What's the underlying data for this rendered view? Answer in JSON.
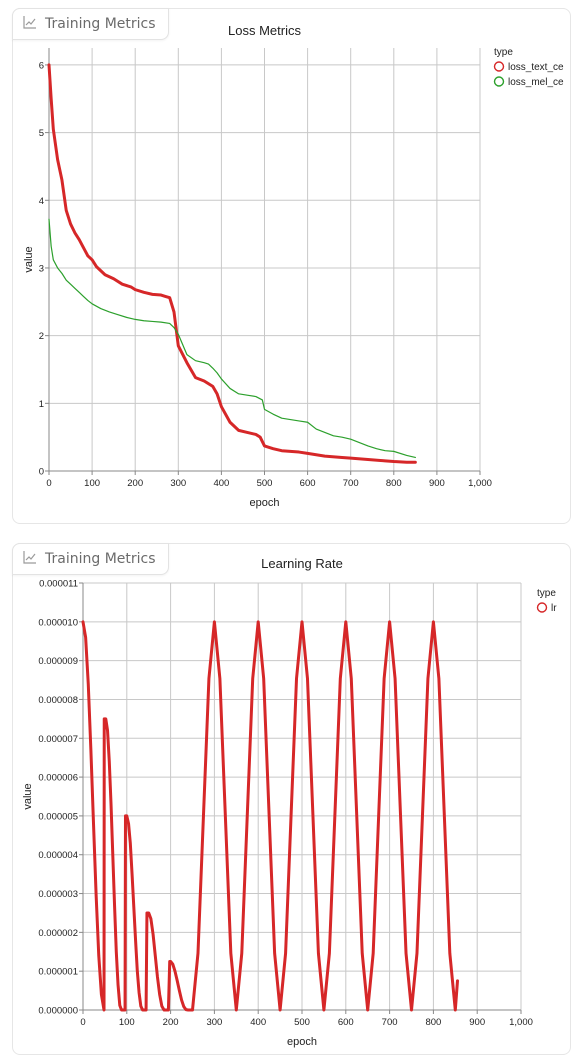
{
  "panels": [
    {
      "tab_label": "Training Metrics",
      "icon": "chart-line-icon"
    },
    {
      "tab_label": "Training Metrics",
      "icon": "chart-line-icon"
    }
  ],
  "chart_data": [
    {
      "type": "line",
      "title": "Loss Metrics",
      "xlabel": "epoch",
      "ylabel": "value",
      "xlim": [
        0,
        1000
      ],
      "ylim": [
        0,
        6.25
      ],
      "xticks": [
        0,
        100,
        200,
        300,
        400,
        500,
        600,
        700,
        800,
        900,
        1000
      ],
      "xtick_labels": [
        "0",
        "100",
        "200",
        "300",
        "400",
        "500",
        "600",
        "700",
        "800",
        "900",
        "1,000"
      ],
      "yticks": [
        0,
        1,
        2,
        3,
        4,
        5,
        6
      ],
      "ytick_labels": [
        "0",
        "1",
        "2",
        "3",
        "4",
        "5",
        "6"
      ],
      "grid": true,
      "legend_title": "type",
      "legend_position": "right",
      "series": [
        {
          "name": "loss_text_ce",
          "color": "#d62728",
          "width": 3,
          "x": [
            0,
            5,
            10,
            20,
            30,
            40,
            50,
            60,
            70,
            80,
            90,
            100,
            110,
            130,
            150,
            170,
            190,
            200,
            220,
            240,
            260,
            270,
            280,
            290,
            300,
            320,
            340,
            360,
            380,
            390,
            400,
            420,
            440,
            460,
            480,
            490,
            500,
            520,
            540,
            560,
            580,
            600,
            640,
            680,
            700,
            740,
            780,
            800,
            830,
            850
          ],
          "y": [
            6.0,
            5.5,
            5.05,
            4.6,
            4.3,
            3.85,
            3.65,
            3.52,
            3.42,
            3.3,
            3.18,
            3.12,
            3.02,
            2.9,
            2.84,
            2.76,
            2.72,
            2.68,
            2.64,
            2.61,
            2.6,
            2.58,
            2.56,
            2.35,
            1.85,
            1.6,
            1.38,
            1.33,
            1.25,
            1.14,
            0.95,
            0.72,
            0.6,
            0.57,
            0.54,
            0.5,
            0.37,
            0.33,
            0.3,
            0.29,
            0.28,
            0.26,
            0.22,
            0.2,
            0.19,
            0.17,
            0.15,
            0.14,
            0.13,
            0.13
          ]
        },
        {
          "name": "loss_mel_ce",
          "color": "#2ca02c",
          "width": 1.2,
          "x": [
            0,
            5,
            10,
            20,
            30,
            40,
            50,
            60,
            70,
            80,
            90,
            100,
            120,
            140,
            160,
            180,
            200,
            220,
            240,
            260,
            280,
            290,
            300,
            320,
            340,
            360,
            370,
            380,
            390,
            400,
            420,
            440,
            460,
            480,
            495,
            500,
            520,
            540,
            560,
            580,
            600,
            620,
            640,
            660,
            680,
            700,
            720,
            740,
            760,
            780,
            800,
            830,
            850
          ],
          "y": [
            3.72,
            3.32,
            3.12,
            3.0,
            2.92,
            2.82,
            2.76,
            2.7,
            2.64,
            2.58,
            2.52,
            2.47,
            2.4,
            2.35,
            2.31,
            2.27,
            2.24,
            2.22,
            2.21,
            2.2,
            2.18,
            2.12,
            2.02,
            1.72,
            1.63,
            1.6,
            1.58,
            1.52,
            1.45,
            1.36,
            1.22,
            1.14,
            1.12,
            1.1,
            1.05,
            0.91,
            0.84,
            0.78,
            0.76,
            0.74,
            0.72,
            0.62,
            0.57,
            0.52,
            0.5,
            0.47,
            0.42,
            0.37,
            0.33,
            0.3,
            0.29,
            0.23,
            0.2
          ]
        }
      ]
    },
    {
      "type": "line",
      "title": "Learning Rate",
      "xlabel": "epoch",
      "ylabel": "value",
      "xlim": [
        0,
        1000
      ],
      "ylim": [
        0,
        1.1e-05
      ],
      "xticks": [
        0,
        100,
        200,
        300,
        400,
        500,
        600,
        700,
        800,
        900,
        1000
      ],
      "xtick_labels": [
        "0",
        "100",
        "200",
        "300",
        "400",
        "500",
        "600",
        "700",
        "800",
        "900",
        "1,000"
      ],
      "yticks": [
        0,
        1e-06,
        2e-06,
        3e-06,
        4e-06,
        5e-06,
        6e-06,
        7e-06,
        8e-06,
        9e-06,
        1e-05,
        1.1e-05
      ],
      "ytick_labels": [
        "0.000000",
        "0.000001",
        "0.000002",
        "0.000003",
        "0.000004",
        "0.000005",
        "0.000006",
        "0.000007",
        "0.000008",
        "0.000009",
        "0.000010",
        "0.000011"
      ],
      "grid": true,
      "legend_title": "type",
      "legend_position": "right",
      "series": [
        {
          "name": "lr",
          "color": "#d62728",
          "width": 3,
          "x": [
            0,
            6,
            12,
            18,
            24,
            30,
            36,
            42,
            48,
            48.5,
            52,
            56,
            60,
            64,
            68,
            72,
            76,
            80,
            84,
            88,
            92,
            96,
            97,
            100,
            104,
            108,
            112,
            116,
            120,
            124,
            128,
            132,
            136,
            140,
            144,
            146,
            150,
            155,
            160,
            165,
            170,
            175,
            180,
            185,
            190,
            195,
            198,
            200,
            205,
            210,
            215,
            220,
            225,
            230,
            235,
            240,
            245,
            250,
            262.5,
            275,
            287.5,
            300,
            312.5,
            325,
            337.5,
            350,
            362.5,
            375,
            387.5,
            400,
            412.5,
            425,
            437.5,
            450,
            462.5,
            475,
            487.5,
            500,
            512.5,
            525,
            537.5,
            550,
            562.5,
            575,
            587.5,
            600,
            612.5,
            625,
            637.5,
            650,
            662.5,
            675,
            687.5,
            700,
            712.5,
            725,
            737.5,
            750,
            762.5,
            775,
            787.5,
            800,
            812.5,
            825,
            837.5,
            850,
            855
          ],
          "y": [
            1e-05,
            9.6e-06,
            8.4e-06,
            6.7e-06,
            4.8e-06,
            2.95e-06,
            1.4e-06,
            4e-07,
            0,
            7.5e-06,
            7.5e-06,
            7.2e-06,
            6.4e-06,
            5.3e-06,
            4e-06,
            2.7e-06,
            1.5e-06,
            6.5e-07,
            1.2e-07,
            0,
            0,
            0,
            5e-06,
            5e-06,
            4.8e-06,
            4.3e-06,
            3.5e-06,
            2.65e-06,
            1.8e-06,
            1e-06,
            4.5e-07,
            1e-07,
            0,
            0,
            0,
            2.5e-06,
            2.5e-06,
            2.35e-06,
            1.95e-06,
            1.4e-06,
            8.5e-07,
            4e-07,
            1e-07,
            0,
            0,
            0,
            1.25e-06,
            1.25e-06,
            1.18e-06,
            1e-06,
            7.6e-07,
            5e-07,
            2.6e-07,
            9e-08,
            1e-08,
            0,
            0,
            0,
            1.46e-06,
            5e-06,
            8.54e-06,
            1e-05,
            8.54e-06,
            5e-06,
            1.46e-06,
            0,
            1.46e-06,
            5e-06,
            8.54e-06,
            1e-05,
            8.54e-06,
            5e-06,
            1.46e-06,
            0,
            1.46e-06,
            5e-06,
            8.54e-06,
            1e-05,
            8.54e-06,
            5e-06,
            1.46e-06,
            0,
            1.46e-06,
            5e-06,
            8.54e-06,
            1e-05,
            8.54e-06,
            5e-06,
            1.46e-06,
            0,
            1.46e-06,
            5e-06,
            8.54e-06,
            1e-05,
            8.54e-06,
            5e-06,
            1.46e-06,
            0,
            1.46e-06,
            5e-06,
            8.54e-06,
            1e-05,
            8.54e-06,
            5e-06,
            1.46e-06,
            0,
            7.5e-07
          ]
        }
      ]
    }
  ]
}
